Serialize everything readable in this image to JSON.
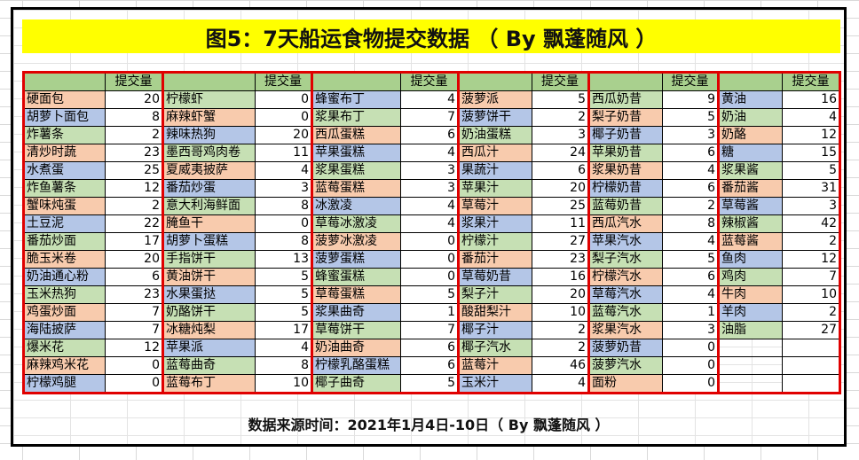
{
  "title": "图5：7天船运食物提交数据 （ By 飘蓬随风 ）",
  "footer": "数据来源时间：2021年1月4日-10日（ By 飘蓬随风 ）",
  "colors": {
    "orange": "#f8cbad",
    "blue": "#b4c6e7",
    "green": "#c6e0b4",
    "header": "#a9d08e",
    "title_bg": "#ffff00",
    "group_border": "#e00000"
  },
  "column_header": "提交量",
  "groups": [
    {
      "items": [
        {
          "name": "硬面包",
          "value": 20,
          "color": "o"
        },
        {
          "name": "胡萝卜面包",
          "value": 8,
          "color": "b"
        },
        {
          "name": "炸薯条",
          "value": 2,
          "color": "g"
        },
        {
          "name": "清炒时蔬",
          "value": 23,
          "color": "o"
        },
        {
          "name": "水煮蛋",
          "value": 25,
          "color": "b"
        },
        {
          "name": "炸鱼薯条",
          "value": 12,
          "color": "g"
        },
        {
          "name": "蟹味炖蛋",
          "value": 2,
          "color": "o"
        },
        {
          "name": "土豆泥",
          "value": 22,
          "color": "b"
        },
        {
          "name": "番茄炒面",
          "value": 17,
          "color": "g"
        },
        {
          "name": "脆玉米卷",
          "value": 20,
          "color": "o"
        },
        {
          "name": "奶油通心粉",
          "value": 6,
          "color": "b"
        },
        {
          "name": "玉米热狗",
          "value": 23,
          "color": "g"
        },
        {
          "name": "鸡蛋炒面",
          "value": 7,
          "color": "o"
        },
        {
          "name": "海陆披萨",
          "value": 7,
          "color": "b"
        },
        {
          "name": "爆米花",
          "value": 12,
          "color": "g"
        },
        {
          "name": "麻辣鸡米花",
          "value": 0,
          "color": "o"
        },
        {
          "name": "柠檬鸡腿",
          "value": 0,
          "color": "b"
        }
      ]
    },
    {
      "items": [
        {
          "name": "柠檬虾",
          "value": 0,
          "color": "g"
        },
        {
          "name": "麻辣虾蟹",
          "value": 0,
          "color": "o"
        },
        {
          "name": "辣味热狗",
          "value": 20,
          "color": "b"
        },
        {
          "name": "墨西哥鸡肉卷",
          "value": 11,
          "color": "g"
        },
        {
          "name": "夏威夷披萨",
          "value": 4,
          "color": "o"
        },
        {
          "name": "番茄炒蛋",
          "value": 3,
          "color": "b"
        },
        {
          "name": "意大利海鲜面",
          "value": 8,
          "color": "g"
        },
        {
          "name": "腌鱼干",
          "value": 0,
          "color": "o"
        },
        {
          "name": "胡萝卜蛋糕",
          "value": 8,
          "color": "b"
        },
        {
          "name": "手指饼干",
          "value": 13,
          "color": "g"
        },
        {
          "name": "黄油饼干",
          "value": 5,
          "color": "o"
        },
        {
          "name": "水果蛋挞",
          "value": 5,
          "color": "b"
        },
        {
          "name": "奶酪饼干",
          "value": 5,
          "color": "g"
        },
        {
          "name": "冰糖炖梨",
          "value": 17,
          "color": "o"
        },
        {
          "name": "苹果派",
          "value": 4,
          "color": "b"
        },
        {
          "name": "蓝莓曲奇",
          "value": 8,
          "color": "g"
        },
        {
          "name": "蓝莓布丁",
          "value": 10,
          "color": "o"
        }
      ]
    },
    {
      "items": [
        {
          "name": "蜂蜜布丁",
          "value": 4,
          "color": "b"
        },
        {
          "name": "浆果布丁",
          "value": 7,
          "color": "g"
        },
        {
          "name": "西瓜蛋糕",
          "value": 6,
          "color": "o"
        },
        {
          "name": "苹果蛋糕",
          "value": 4,
          "color": "b"
        },
        {
          "name": "浆果蛋糕",
          "value": 3,
          "color": "g"
        },
        {
          "name": "蓝莓蛋糕",
          "value": 3,
          "color": "o"
        },
        {
          "name": "冰激凌",
          "value": 4,
          "color": "b"
        },
        {
          "name": "草莓冰激凌",
          "value": 4,
          "color": "g"
        },
        {
          "name": "菠萝冰激凌",
          "value": 0,
          "color": "o"
        },
        {
          "name": "菠萝蛋糕",
          "value": 0,
          "color": "b"
        },
        {
          "name": "蜂蜜蛋糕",
          "value": 0,
          "color": "g"
        },
        {
          "name": "草莓蛋糕",
          "value": 5,
          "color": "o"
        },
        {
          "name": "浆果曲奇",
          "value": 1,
          "color": "b"
        },
        {
          "name": "草莓饼干",
          "value": 7,
          "color": "g"
        },
        {
          "name": "奶油曲奇",
          "value": 6,
          "color": "o"
        },
        {
          "name": "柠檬乳酪蛋糕",
          "value": 6,
          "color": "b"
        },
        {
          "name": "椰子曲奇",
          "value": 5,
          "color": "g"
        }
      ]
    },
    {
      "items": [
        {
          "name": "菠萝派",
          "value": 5,
          "color": "o"
        },
        {
          "name": "菠萝饼干",
          "value": 2,
          "color": "b"
        },
        {
          "name": "奶油蛋糕",
          "value": 3,
          "color": "g"
        },
        {
          "name": "西瓜汁",
          "value": 24,
          "color": "o"
        },
        {
          "name": "果蔬汁",
          "value": 6,
          "color": "b"
        },
        {
          "name": "苹果汁",
          "value": 20,
          "color": "g"
        },
        {
          "name": "草莓汁",
          "value": 25,
          "color": "o"
        },
        {
          "name": "浆果汁",
          "value": 11,
          "color": "b"
        },
        {
          "name": "柠檬汁",
          "value": 27,
          "color": "g"
        },
        {
          "name": "番茄汁",
          "value": 23,
          "color": "o"
        },
        {
          "name": "草莓奶昔",
          "value": 16,
          "color": "b"
        },
        {
          "name": "梨子汁",
          "value": 20,
          "color": "g"
        },
        {
          "name": "酸甜梨汁",
          "value": 10,
          "color": "o"
        },
        {
          "name": "椰子汁",
          "value": 2,
          "color": "b"
        },
        {
          "name": "椰子汽水",
          "value": 2,
          "color": "g"
        },
        {
          "name": "蓝莓汁",
          "value": 46,
          "color": "o"
        },
        {
          "name": "玉米汁",
          "value": 4,
          "color": "b"
        }
      ]
    },
    {
      "items": [
        {
          "name": "西瓜奶昔",
          "value": 9,
          "color": "g"
        },
        {
          "name": "梨子奶昔",
          "value": 5,
          "color": "o"
        },
        {
          "name": "椰子奶昔",
          "value": 3,
          "color": "b"
        },
        {
          "name": "苹果奶昔",
          "value": 6,
          "color": "g"
        },
        {
          "name": "浆果奶昔",
          "value": 4,
          "color": "o"
        },
        {
          "name": "柠檬奶昔",
          "value": 6,
          "color": "b"
        },
        {
          "name": "蓝莓奶昔",
          "value": 2,
          "color": "g"
        },
        {
          "name": "西瓜汽水",
          "value": 8,
          "color": "o"
        },
        {
          "name": "苹果汽水",
          "value": 4,
          "color": "b"
        },
        {
          "name": "梨子汽水",
          "value": 5,
          "color": "g"
        },
        {
          "name": "柠檬汽水",
          "value": 6,
          "color": "o"
        },
        {
          "name": "草莓汽水",
          "value": 4,
          "color": "b"
        },
        {
          "name": "蓝莓汽水",
          "value": 1,
          "color": "g"
        },
        {
          "name": "浆果汽水",
          "value": 3,
          "color": "o"
        },
        {
          "name": "菠萝奶昔",
          "value": 0,
          "color": "b"
        },
        {
          "name": "菠萝汽水",
          "value": 0,
          "color": "g"
        },
        {
          "name": "面粉",
          "value": 0,
          "color": "o"
        }
      ]
    },
    {
      "items": [
        {
          "name": "黄油",
          "value": 16,
          "color": "b"
        },
        {
          "name": "奶油",
          "value": 4,
          "color": "g"
        },
        {
          "name": "奶酪",
          "value": 12,
          "color": "o"
        },
        {
          "name": "糖",
          "value": 15,
          "color": "b"
        },
        {
          "name": "浆果酱",
          "value": 5,
          "color": "g"
        },
        {
          "name": "番茄酱",
          "value": 31,
          "color": "o"
        },
        {
          "name": "草莓酱",
          "value": 3,
          "color": "b"
        },
        {
          "name": "辣椒酱",
          "value": 42,
          "color": "g"
        },
        {
          "name": "蓝莓酱",
          "value": 2,
          "color": "o"
        },
        {
          "name": "鱼肉",
          "value": 12,
          "color": "b"
        },
        {
          "name": "鸡肉",
          "value": 7,
          "color": "g"
        },
        {
          "name": "牛肉",
          "value": 10,
          "color": "o"
        },
        {
          "name": "羊肉",
          "value": 2,
          "color": "b"
        },
        {
          "name": "油脂",
          "value": 27,
          "color": "g"
        }
      ]
    }
  ]
}
